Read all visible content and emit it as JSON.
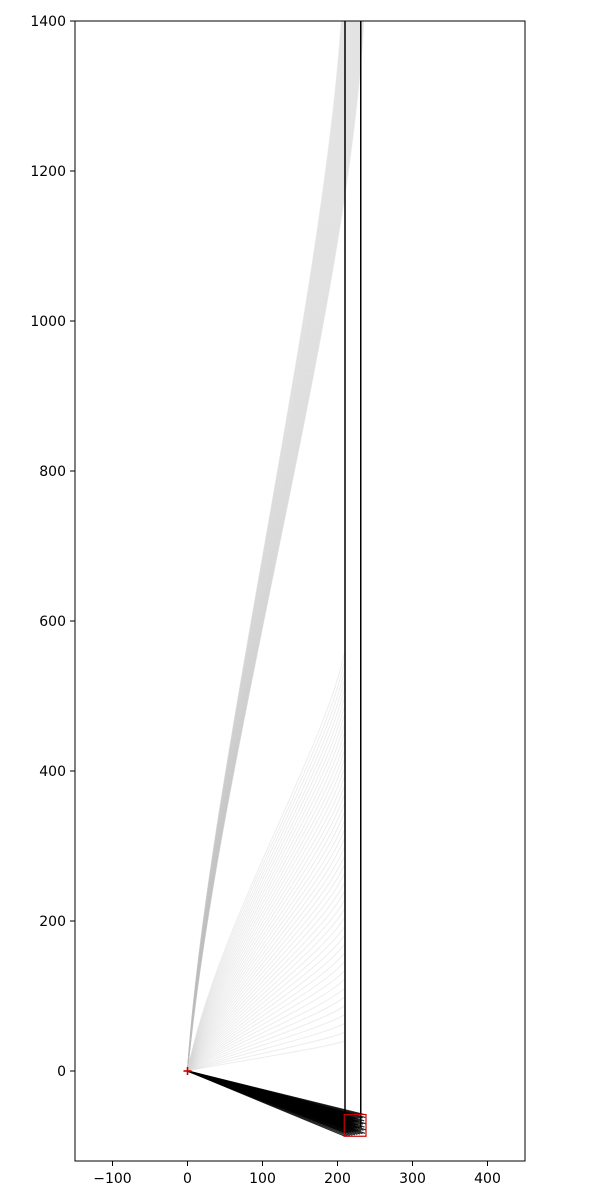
{
  "chart_data": {
    "type": "line",
    "title": "",
    "xlabel": "",
    "ylabel": "",
    "xlim": [
      -150,
      450
    ],
    "ylim": [
      -120,
      1400
    ],
    "grid": false,
    "xticks": [
      -100,
      0,
      100,
      200,
      300,
      400
    ],
    "yticks": [
      0,
      200,
      400,
      600,
      800,
      1000,
      1200,
      1400
    ],
    "xtick_labels": [
      "−100",
      "0",
      "100",
      "200",
      "300",
      "400"
    ],
    "ytick_labels": [
      "0",
      "200",
      "400",
      "600",
      "800",
      "1000",
      "1200",
      "1400"
    ],
    "origin_marker": {
      "x": 0,
      "y": 0,
      "color": "#cc0000",
      "symbol": "+"
    },
    "vertical_lines": [
      {
        "x": 210,
        "y_from": -75,
        "y_to": 1400,
        "color": "#000000"
      },
      {
        "x": 231,
        "y_from": -75,
        "y_to": 1400,
        "color": "#000000"
      }
    ],
    "target_box": {
      "x0": 209,
      "x1": 238,
      "y0": -87,
      "y1": -58,
      "color": "#cc0000"
    },
    "ray_fan_dark": {
      "color": "#000000",
      "count": 60,
      "x_range": [
        210,
        238
      ],
      "y_range": [
        -87,
        -58
      ]
    },
    "curve_band_upper": {
      "color": "#bdbdbd",
      "count": 40,
      "x_end_range": [
        205,
        235
      ],
      "y_end": 1400
    },
    "curve_band_lower": {
      "color": "#d6d6d6",
      "count": 45,
      "x_end": 210,
      "y_end_range": [
        40,
        560
      ]
    }
  }
}
